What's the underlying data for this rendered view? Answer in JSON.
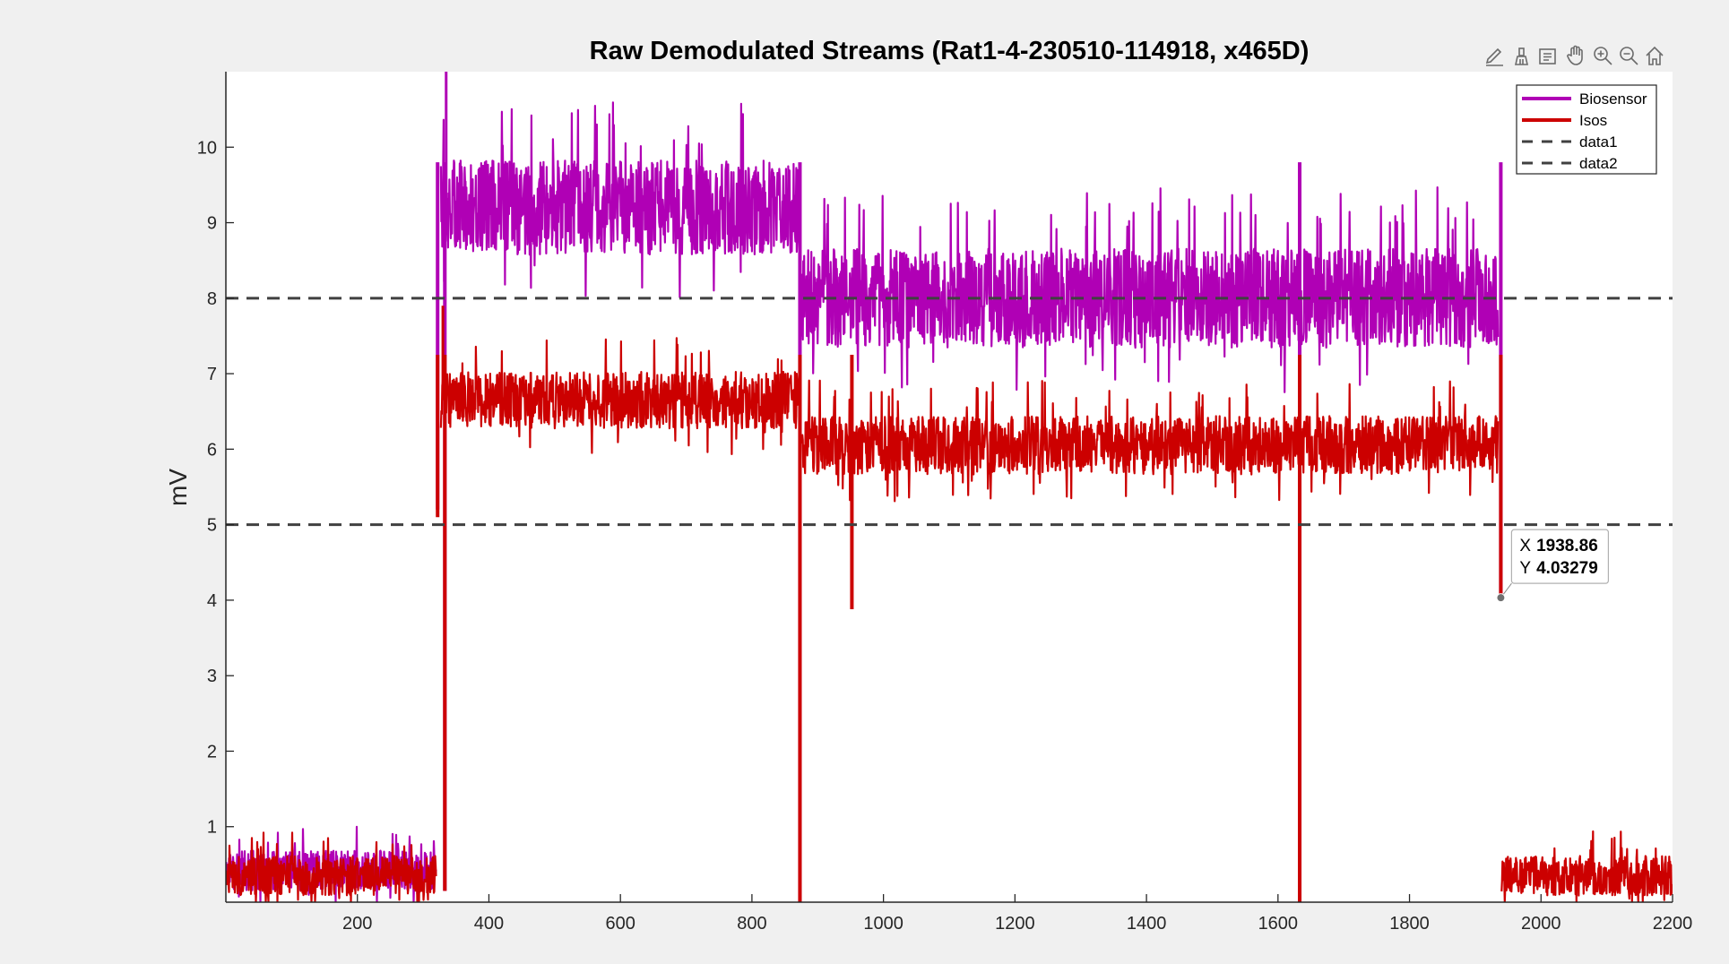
{
  "chart_data": {
    "type": "line",
    "title": "Raw Demodulated Streams (Rat1-4-230510-114918, x465D)",
    "xlabel": "",
    "ylabel": "mV",
    "xlim": [
      0,
      2200
    ],
    "ylim": [
      0,
      11
    ],
    "xticks": [
      200,
      400,
      600,
      800,
      1000,
      1200,
      1400,
      1600,
      1800,
      2000,
      2200
    ],
    "yticks": [
      1,
      2,
      3,
      4,
      5,
      6,
      7,
      8,
      9,
      10
    ],
    "grid": false,
    "legend_position": "top-right",
    "series": [
      {
        "name": "Biosensor",
        "color": "#b000b5",
        "segments": [
          {
            "x": [
              0,
              320
            ],
            "level": 0.42,
            "noise": 0.42
          },
          {
            "x": [
              327,
              870
            ],
            "level": 9.2,
            "noise": 1.0
          },
          {
            "x": [
              876,
              1935
            ],
            "level": 8.0,
            "noise": 1.05
          }
        ],
        "drops": [
          {
            "x": 322,
            "y": 5.2
          },
          {
            "x": 333,
            "y": 0.15
          },
          {
            "x": 873,
            "y": 0.0
          },
          {
            "x": 1633,
            "y": 0.0
          },
          {
            "x": 1938.86,
            "y": 4.03
          }
        ],
        "spikes": [
          {
            "x": 335,
            "y": 11.0
          }
        ]
      },
      {
        "name": "Isos",
        "color": "#cc0000",
        "segments": [
          {
            "x": [
              0,
              320
            ],
            "level": 0.35,
            "noise": 0.42
          },
          {
            "x": [
              327,
              870
            ],
            "level": 6.65,
            "noise": 0.6
          },
          {
            "x": [
              876,
              1935
            ],
            "level": 6.05,
            "noise": 0.62
          },
          {
            "x": [
              1940,
              2200
            ],
            "level": 0.35,
            "noise": 0.42
          }
        ],
        "drops": [
          {
            "x": 322,
            "y": 5.1
          },
          {
            "x": 333,
            "y": 0.15
          },
          {
            "x": 873,
            "y": 0.0
          },
          {
            "x": 952,
            "y": 3.88
          },
          {
            "x": 1633,
            "y": 0.0
          },
          {
            "x": 1938.86,
            "y": 4.03
          }
        ],
        "spikes": [
          {
            "x": 330,
            "y": 7.9
          }
        ]
      },
      {
        "name": "data1",
        "color": "#404040",
        "style": "dashed",
        "x": [
          0,
          2200
        ],
        "y": [
          8,
          8
        ]
      },
      {
        "name": "data2",
        "color": "#404040",
        "style": "dashed",
        "x": [
          0,
          2200
        ],
        "y": [
          5,
          5
        ]
      }
    ],
    "datatip": {
      "x_label": "X",
      "x_value": "1938.86",
      "y_label": "Y",
      "y_value": "4.03279",
      "x": 1938.86,
      "y": 4.03279
    }
  },
  "toolbar": {
    "icons": [
      "edit-icon",
      "brush-icon",
      "datatip-icon",
      "pan-icon",
      "zoom-in-icon",
      "zoom-out-icon",
      "home-icon"
    ]
  }
}
